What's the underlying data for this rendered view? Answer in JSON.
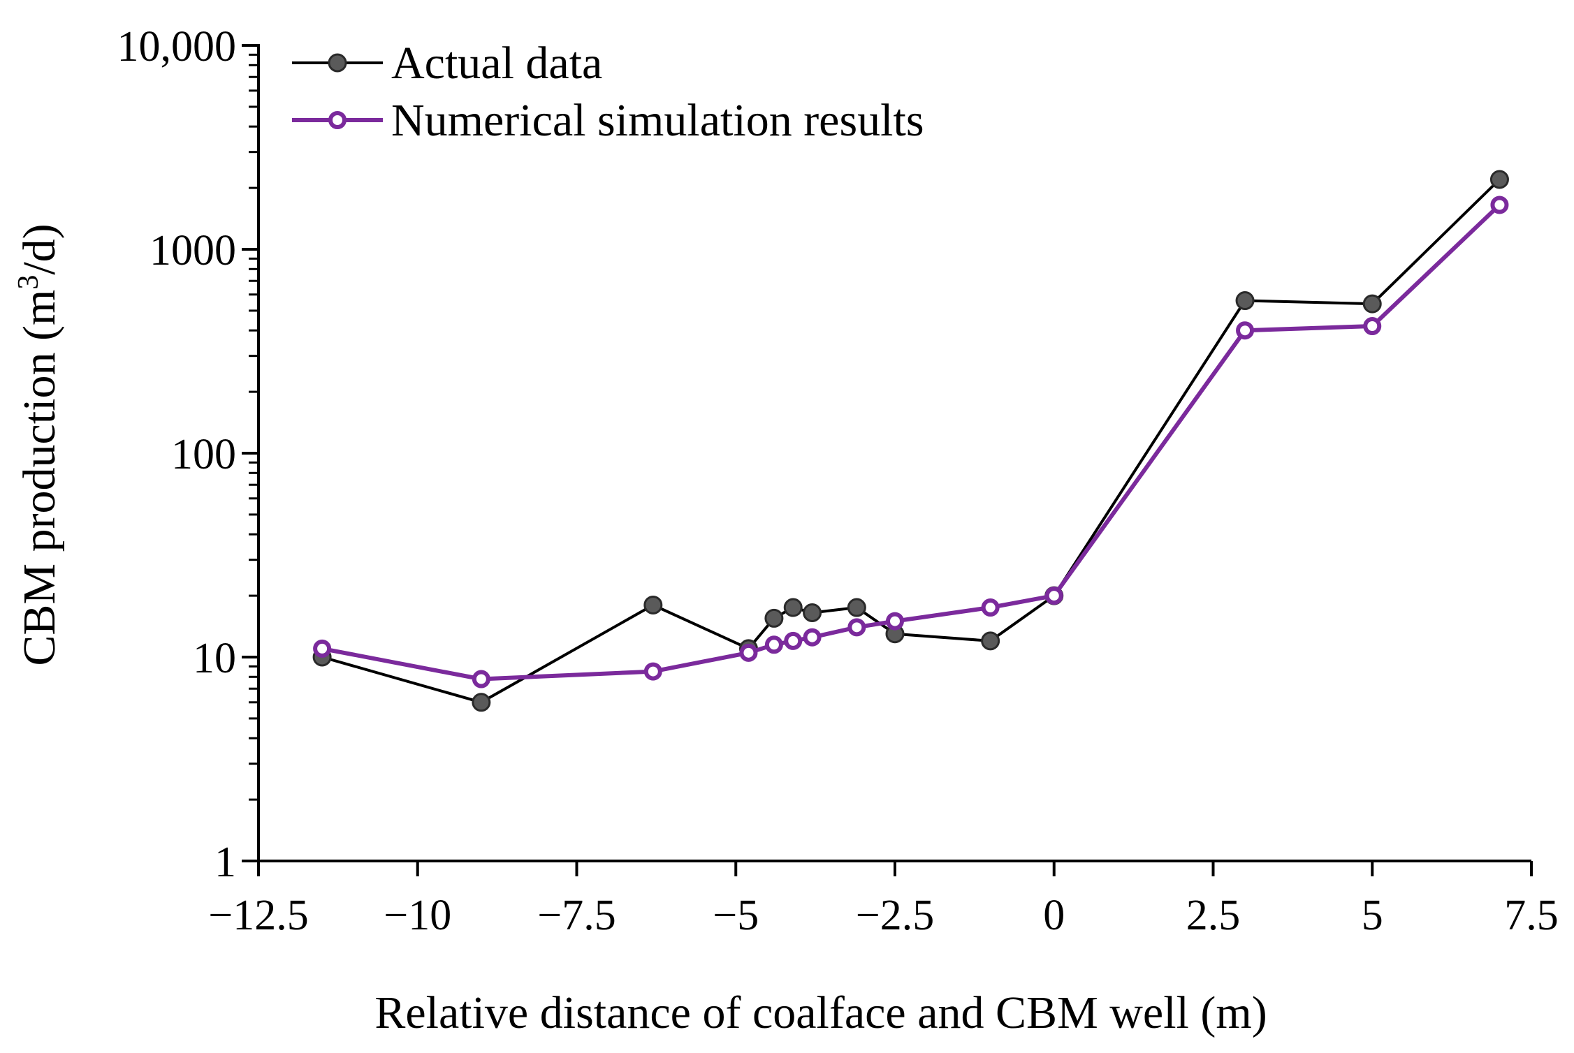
{
  "chart_data": {
    "type": "line",
    "title": "",
    "xlabel": "Relative distance of coalface and CBM well (m)",
    "ylabel_main": "CBM production (m",
    "ylabel_sup": "3",
    "ylabel_end": "/d)",
    "xlim": [
      -12.5,
      7.5
    ],
    "ylim": [
      1,
      10000
    ],
    "y_scale": "log",
    "x_ticks": [
      -12.5,
      -10,
      -7.5,
      -5,
      -2.5,
      0,
      2.5,
      5,
      7.5
    ],
    "x_tick_labels": [
      "−12.5",
      "−10",
      "−7.5",
      "−5",
      "−2.5",
      "0",
      "2.5",
      "5",
      "7.5"
    ],
    "y_ticks": [
      1,
      10,
      100,
      1000,
      10000
    ],
    "y_tick_labels": [
      "1",
      "10",
      "100",
      "1000",
      "10,000"
    ],
    "grid": false,
    "legend_position": "top-left",
    "series": [
      {
        "name": "Actual data",
        "color": "#000000",
        "marker_color": "#5a5a5a",
        "x": [
          -11.5,
          -9.0,
          -6.3,
          -4.8,
          -4.4,
          -4.1,
          -3.8,
          -3.1,
          -2.5,
          -1.0,
          0.0,
          3.0,
          5.0,
          7.0
        ],
        "y": [
          10,
          6,
          18,
          11,
          15.5,
          17.5,
          16.5,
          17.5,
          13,
          12,
          20,
          560,
          540,
          2200
        ]
      },
      {
        "name": "Numerical simulation results",
        "color": "#7b2a9c",
        "marker_color": "#7b2a9c",
        "x": [
          -11.5,
          -9.0,
          -6.3,
          -4.8,
          -4.4,
          -4.1,
          -3.8,
          -3.1,
          -2.5,
          -1.0,
          0.0,
          3.0,
          5.0,
          7.0
        ],
        "y": [
          11,
          7.8,
          8.5,
          10.5,
          11.5,
          12,
          12.5,
          14,
          15,
          17.5,
          20,
          400,
          420,
          1650
        ]
      }
    ]
  }
}
